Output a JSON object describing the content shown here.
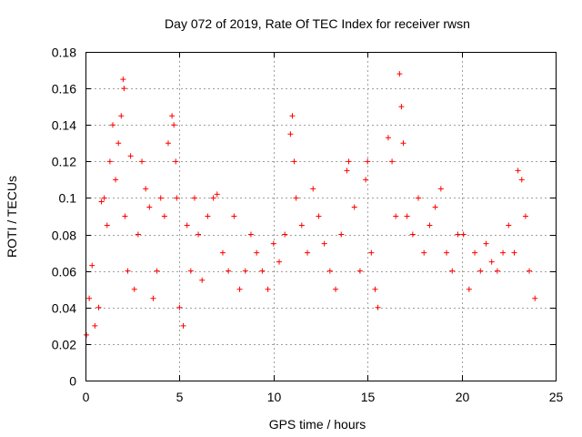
{
  "chart_data": {
    "type": "scatter",
    "title": "Day 072 of 2019, Rate Of TEC Index for receiver rwsn",
    "xlabel": "GPS time / hours",
    "ylabel": "ROTI / TECUs",
    "xlim": [
      0,
      25
    ],
    "ylim": [
      0,
      0.18
    ],
    "xticks": [
      0,
      5,
      10,
      15,
      20,
      25
    ],
    "xtick_labels": [
      "0",
      "5",
      "10",
      "15",
      "20",
      "25"
    ],
    "yticks": [
      0,
      0.02,
      0.04,
      0.06,
      0.08,
      0.1,
      0.12,
      0.14,
      0.16,
      0.18
    ],
    "ytick_labels": [
      "0",
      "0.02",
      "0.04",
      "0.06",
      "0.08",
      "0.1",
      "0.12",
      "0.14",
      "0.16",
      "0.18"
    ],
    "grid": true,
    "marker": "+",
    "color": "#ff0000",
    "series": [
      {
        "name": "ROTI",
        "x": [
          0.05,
          0.2,
          0.35,
          0.5,
          0.7,
          0.85,
          1.0,
          1.15,
          1.3,
          1.45,
          1.6,
          1.75,
          1.9,
          2.0,
          2.05,
          2.1,
          2.25,
          2.4,
          2.6,
          2.8,
          3.0,
          3.2,
          3.4,
          3.6,
          3.8,
          4.0,
          4.2,
          4.4,
          4.6,
          4.7,
          4.8,
          4.85,
          5.0,
          5.2,
          5.4,
          5.6,
          5.8,
          6.0,
          6.2,
          6.5,
          6.8,
          7.0,
          7.3,
          7.6,
          7.9,
          8.2,
          8.5,
          8.8,
          9.1,
          9.4,
          9.7,
          10.0,
          10.3,
          10.6,
          10.9,
          11.0,
          11.1,
          11.2,
          11.5,
          11.8,
          12.1,
          12.4,
          12.7,
          13.0,
          13.3,
          13.6,
          13.9,
          14.0,
          14.3,
          14.6,
          14.9,
          15.0,
          15.2,
          15.4,
          15.55,
          16.1,
          16.3,
          16.5,
          16.7,
          16.8,
          16.9,
          17.1,
          17.4,
          17.7,
          18.0,
          18.3,
          18.6,
          18.9,
          19.2,
          19.5,
          19.8,
          20.1,
          20.4,
          20.7,
          21.0,
          21.3,
          21.6,
          21.9,
          22.2,
          22.5,
          22.8,
          23.0,
          23.2,
          23.4,
          23.6,
          23.9
        ],
        "y": [
          0.025,
          0.045,
          0.063,
          0.03,
          0.04,
          0.098,
          0.1,
          0.085,
          0.12,
          0.14,
          0.11,
          0.13,
          0.145,
          0.165,
          0.16,
          0.09,
          0.06,
          0.123,
          0.05,
          0.08,
          0.12,
          0.105,
          0.095,
          0.045,
          0.06,
          0.1,
          0.09,
          0.13,
          0.145,
          0.14,
          0.12,
          0.1,
          0.04,
          0.03,
          0.085,
          0.06,
          0.1,
          0.08,
          0.055,
          0.09,
          0.1,
          0.102,
          0.07,
          0.06,
          0.09,
          0.05,
          0.06,
          0.08,
          0.07,
          0.06,
          0.05,
          0.075,
          0.065,
          0.08,
          0.135,
          0.145,
          0.12,
          0.1,
          0.085,
          0.07,
          0.105,
          0.09,
          0.075,
          0.06,
          0.05,
          0.08,
          0.115,
          0.12,
          0.095,
          0.06,
          0.11,
          0.12,
          0.07,
          0.05,
          0.04,
          0.133,
          0.12,
          0.09,
          0.168,
          0.15,
          0.13,
          0.09,
          0.08,
          0.1,
          0.07,
          0.085,
          0.095,
          0.105,
          0.07,
          0.06,
          0.08,
          0.08,
          0.05,
          0.07,
          0.06,
          0.075,
          0.065,
          0.06,
          0.07,
          0.085,
          0.07,
          0.115,
          0.11,
          0.09,
          0.06,
          0.045
        ]
      }
    ]
  }
}
